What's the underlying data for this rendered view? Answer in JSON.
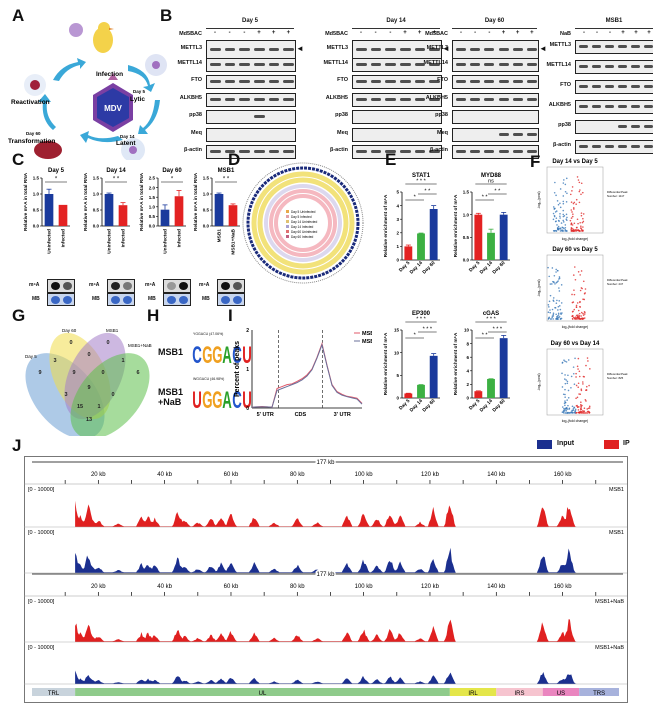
{
  "panels": {
    "A": {
      "letter": "A",
      "center": "MDV",
      "stages": [
        "Infection",
        "Lytic",
        "Latent",
        "Transformation",
        "Reactivation"
      ],
      "stage_days": {
        "Lytic": "Day 5",
        "Latent": "Day 14",
        "Transformation": "Day 60"
      }
    },
    "B": {
      "letter": "B",
      "blots": [
        {
          "title": "Day 5",
          "treat_label": "Md5BAC",
          "signs": [
            "-",
            "-",
            "-",
            "+",
            "+",
            "+"
          ],
          "rows": [
            "METTL3",
            "METTL14",
            "FTO",
            "ALKBH5",
            "pp38",
            "Meq",
            "β-actin"
          ]
        },
        {
          "title": "Day 14",
          "treat_label": "Md5BAC",
          "signs": [
            "-",
            "-",
            "-",
            "+",
            "+",
            "+"
          ],
          "rows": [
            "METTL3",
            "METTL14",
            "FTO",
            "ALKBH5",
            "pp38",
            "Meq",
            "β-actin"
          ]
        },
        {
          "title": "Day 60",
          "treat_label": "Md5BAC",
          "signs": [
            "-",
            "-",
            "-",
            "+",
            "+",
            "+"
          ],
          "rows": [
            "METTL3",
            "METTL14",
            "FTO",
            "ALKBH5",
            "pp38",
            "Meq",
            "β-actin"
          ]
        },
        {
          "title": "MSB1",
          "treat_label": "NaB",
          "signs": [
            "-",
            "-",
            "-",
            "+",
            "+",
            "+"
          ],
          "rows": [
            "METTL3",
            "METTL14",
            "FTO",
            "ALKBH5",
            "pp38",
            "β-actin"
          ]
        }
      ]
    },
    "C": {
      "letter": "C",
      "dot_labels": [
        "m⁶A",
        "MB"
      ]
    },
    "D": {
      "letter": "D",
      "legend": [
        "Day 5 Uninfected",
        "Day 5 Infected",
        "Day 14 Uninfected",
        "Day 14 Infected",
        "Day 60 Uninfected",
        "Day 60 Infected"
      ]
    },
    "E": {
      "letter": "E"
    },
    "F": {
      "letter": "F",
      "plots": [
        {
          "title": "Day 14 vs Day 5",
          "legend_title": "Differential Peak",
          "legend_number": "Number: 1117",
          "xlabel": "log₂(fold change)",
          "ylabel": "-log₁₀(pval)"
        },
        {
          "title": "Day 60 vs Day 5",
          "legend_title": "Differential Peak",
          "legend_number": "Number: 247",
          "xlabel": "log₂(fold change)",
          "ylabel": "-log₁₀(pval)"
        },
        {
          "title": "Day 60 vs Day 14",
          "legend_title": "Differential Peak",
          "legend_number": "Number: 825",
          "xlabel": "log₂(fold change)",
          "ylabel": "-log₁₀(pval)"
        }
      ]
    },
    "G": {
      "letter": "G",
      "sets": [
        "Day 5",
        "Day 60",
        "MSB1",
        "MSB1+NaB"
      ],
      "counts": [
        "9",
        "0",
        "0",
        "6",
        "3",
        "0",
        "1",
        "9",
        "0",
        "3",
        "9",
        "0",
        "15",
        "1",
        "13"
      ]
    },
    "H": {
      "letter": "H",
      "motifs": [
        {
          "sample": "MSB1",
          "motif": "YGGACU (47.06%)",
          "seq": "CGGACU"
        },
        {
          "sample": "MSB1 +NaB",
          "motif": "WGGACU (46.98%)",
          "seq": "UGGACU"
        }
      ]
    },
    "I": {
      "letter": "I",
      "legend": [
        "MSB1",
        "MSB1+NaB"
      ],
      "ylabel": "Percent of peaks",
      "xregions": [
        "5' UTR",
        "CDS",
        "3' UTR"
      ],
      "yticks": [
        "0",
        "1",
        "2"
      ]
    },
    "J": {
      "letter": "J",
      "legend": [
        {
          "name": "Input",
          "color": "#1b2f8f"
        },
        {
          "name": "IP",
          "color": "#e02020"
        }
      ],
      "span": "177 kb",
      "ticks": [
        "20 kb",
        "40 kb",
        "60 kb",
        "80 kb",
        "100 kb",
        "120 kb",
        "140 kb",
        "160 kb"
      ],
      "range_label": "[0 - 10000]",
      "tracks": [
        {
          "sample": "MSB1",
          "type": "IP"
        },
        {
          "sample": "MSB1",
          "type": "Input"
        },
        {
          "sample": "MSB1+NaB",
          "type": "IP"
        },
        {
          "sample": "MSB1+NaB",
          "type": "Input"
        }
      ],
      "regions": [
        {
          "name": "TRL",
          "color": "#c8d3dc",
          "start": 0,
          "end": 13
        },
        {
          "name": "UL",
          "color": "#8fcb8b",
          "start": 13,
          "end": 126
        },
        {
          "name": "IRL",
          "color": "#e4e64a",
          "start": 126,
          "end": 140
        },
        {
          "name": "IRS",
          "color": "#f6c4cf",
          "start": 140,
          "end": 154
        },
        {
          "name": "US",
          "color": "#ea85bf",
          "start": 154,
          "end": 165
        },
        {
          "name": "TRS",
          "color": "#a7b2dc",
          "start": 165,
          "end": 177
        }
      ]
    }
  },
  "chart_data": [
    {
      "type": "bar",
      "title": "Day 5",
      "ylabel": "Relative m⁶A in total RNA",
      "categories": [
        "Uninfected",
        "Infected"
      ],
      "values": [
        1.0,
        0.66
      ],
      "errors": [
        0.15,
        0.0
      ],
      "ylim": [
        0,
        1.5
      ],
      "yticks": [
        "0.0",
        "0.5",
        "1.0",
        "1.5"
      ],
      "colors": [
        "#1a3a9c",
        "#e32222"
      ],
      "significance": "*"
    },
    {
      "type": "bar",
      "title": "Day 14",
      "ylabel": "Relative m⁶A in total RNA",
      "categories": [
        "Uninfected",
        "Infected"
      ],
      "values": [
        1.0,
        0.65
      ],
      "errors": [
        0.03,
        0.08
      ],
      "ylim": [
        0,
        1.5
      ],
      "yticks": [
        "0.0",
        "0.5",
        "1.0",
        "1.5"
      ],
      "colors": [
        "#1a3a9c",
        "#e32222"
      ],
      "significance": "* *"
    },
    {
      "type": "bar",
      "title": "Day 60",
      "ylabel": "Relative m⁶A in total RNA",
      "categories": [
        "Uninfected",
        "Infected"
      ],
      "values": [
        0.85,
        1.55
      ],
      "errors": [
        0.25,
        0.3
      ],
      "ylim": [
        0,
        2.5
      ],
      "yticks": [
        "0.0",
        "0.5",
        "1.0",
        "1.5",
        "2.0",
        "2.5"
      ],
      "colors": [
        "#1a3a9c",
        "#e32222"
      ],
      "significance": "*"
    },
    {
      "type": "bar",
      "title": "MSB1",
      "ylabel": "Relative m⁶A in total RNA",
      "categories": [
        "MSB1",
        "MSB1+NaB"
      ],
      "values": [
        1.0,
        0.65
      ],
      "errors": [
        0.03,
        0.04
      ],
      "ylim": [
        0,
        1.5
      ],
      "yticks": [
        "0.0",
        "0.5",
        "1.0",
        "1.5"
      ],
      "colors": [
        "#1a3a9c",
        "#e32222"
      ],
      "significance": "* *"
    },
    {
      "type": "bar",
      "title": "STAT1",
      "ylabel": "Relative enrichment of m⁶A",
      "categories": [
        "Day 5",
        "Day 14",
        "Day 60"
      ],
      "values": [
        1.0,
        1.95,
        3.75
      ],
      "errors": [
        0.1,
        0.03,
        0.25
      ],
      "ylim": [
        0,
        5
      ],
      "yticks": [
        "0",
        "1",
        "2",
        "3",
        "4",
        "5"
      ],
      "colors": [
        "#e32222",
        "#3cb043",
        "#1a3a9c"
      ],
      "significance": [
        {
          "pair": [
            0,
            1
          ],
          "label": "*"
        },
        {
          "pair": [
            1,
            2
          ],
          "label": "* *"
        },
        {
          "pair": [
            0,
            2
          ],
          "label": "* * *"
        }
      ]
    },
    {
      "type": "bar",
      "title": "MYD88",
      "ylabel": "Relative enrichment of m⁶A",
      "categories": [
        "Day 5",
        "Day 14",
        "Day 60"
      ],
      "values": [
        1.0,
        0.6,
        1.0
      ],
      "errors": [
        0.03,
        0.08,
        0.05
      ],
      "ylim": [
        0,
        1.5
      ],
      "yticks": [
        "0.0",
        "0.5",
        "1.0",
        "1.5"
      ],
      "colors": [
        "#e32222",
        "#3cb043",
        "#1a3a9c"
      ],
      "significance": [
        {
          "pair": [
            0,
            1
          ],
          "label": "* *"
        },
        {
          "pair": [
            1,
            2
          ],
          "label": "* *"
        },
        {
          "pair": [
            0,
            2
          ],
          "label": "ns"
        }
      ]
    },
    {
      "type": "bar",
      "title": "EP300",
      "ylabel": "Relative enrichment of m⁶A",
      "categories": [
        "Day 5",
        "Day 14",
        "Day 60"
      ],
      "values": [
        1.0,
        2.9,
        9.3
      ],
      "errors": [
        0.05,
        0.05,
        0.5
      ],
      "ylim": [
        0,
        15
      ],
      "yticks": [
        "0",
        "5",
        "10",
        "15"
      ],
      "colors": [
        "#e32222",
        "#3cb043",
        "#1a3a9c"
      ],
      "significance": [
        {
          "pair": [
            0,
            1
          ],
          "label": "*"
        },
        {
          "pair": [
            1,
            2
          ],
          "label": "* * *"
        },
        {
          "pair": [
            0,
            2
          ],
          "label": "* * *"
        }
      ]
    },
    {
      "type": "bar",
      "title": "cGAS",
      "ylabel": "Relative enrichment of m⁶A",
      "categories": [
        "Day 5",
        "Day 14",
        "Day 60"
      ],
      "values": [
        1.0,
        2.8,
        8.8
      ],
      "errors": [
        0.05,
        0.03,
        0.4
      ],
      "ylim": [
        0,
        10
      ],
      "yticks": [
        "0",
        "2",
        "4",
        "6",
        "8",
        "10"
      ],
      "colors": [
        "#e32222",
        "#3cb043",
        "#1a3a9c"
      ],
      "significance": [
        {
          "pair": [
            0,
            1
          ],
          "label": "* *"
        },
        {
          "pair": [
            1,
            2
          ],
          "label": "* * *"
        },
        {
          "pair": [
            0,
            2
          ],
          "label": "* * *"
        }
      ]
    },
    {
      "type": "line",
      "title": "Metagene",
      "ylabel": "Percent of peaks",
      "x_regions": [
        "5' UTR",
        "CDS",
        "3' UTR"
      ],
      "ylim": [
        0,
        2
      ],
      "series": [
        {
          "name": "MSB1",
          "color": "#e05a6a",
          "values": [
            0.02,
            0.03,
            0.04,
            0.03,
            0.02,
            0.5,
            0.55,
            0.6,
            0.62,
            0.68,
            0.75,
            0.85,
            1.0,
            1.3,
            1.65,
            1.1,
            0.6,
            0.42,
            0.35,
            0.3,
            0.28,
            0.25,
            0.12
          ]
        },
        {
          "name": "MSB1+NaB",
          "color": "#6a6f9a",
          "values": [
            0.02,
            0.03,
            0.03,
            0.03,
            0.02,
            0.45,
            0.5,
            0.55,
            0.6,
            0.65,
            0.72,
            0.82,
            0.98,
            1.28,
            1.62,
            1.08,
            0.58,
            0.4,
            0.33,
            0.29,
            0.26,
            0.23,
            0.1
          ]
        }
      ]
    }
  ]
}
